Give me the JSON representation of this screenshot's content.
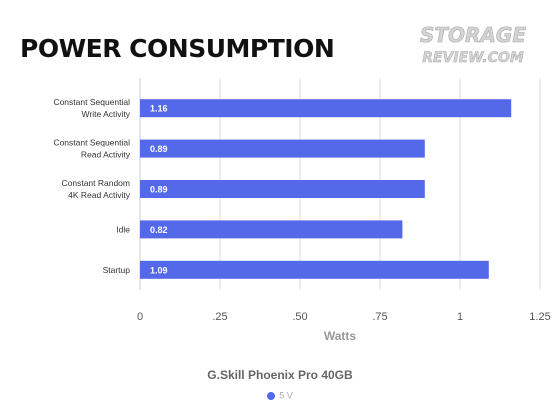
{
  "title": "POWER CONSUMPTION",
  "logo": {
    "line1": "STORAGE",
    "line2": "REVIEW.COM"
  },
  "subtitle": "G.Skill Phoenix Pro 40GB",
  "colors": {
    "bar": "#5469ea",
    "grid": "#dddddd",
    "axis": "#cccccc"
  },
  "chart_data": {
    "type": "bar",
    "orientation": "horizontal",
    "categories": [
      "Constant Sequential\nWrite Activity",
      "Constant Sequential\nRead Activity",
      "Constant Random\n4K Read Activity",
      "Idle",
      "Startup"
    ],
    "series": [
      {
        "name": "5 V",
        "values": [
          1.16,
          0.89,
          0.89,
          0.82,
          1.09
        ]
      }
    ],
    "data_labels": [
      "1.16",
      "0.89",
      "0.89",
      "0.82",
      "1.09"
    ],
    "xlabel": "Watts",
    "xlim": [
      0,
      1.25
    ],
    "xticks": [
      0,
      0.25,
      0.5,
      0.75,
      1,
      1.25
    ],
    "xtick_labels": [
      "0",
      ".25",
      ".50",
      ".75",
      "1",
      "1.25"
    ],
    "grid": true,
    "legend_position": "bottom"
  }
}
